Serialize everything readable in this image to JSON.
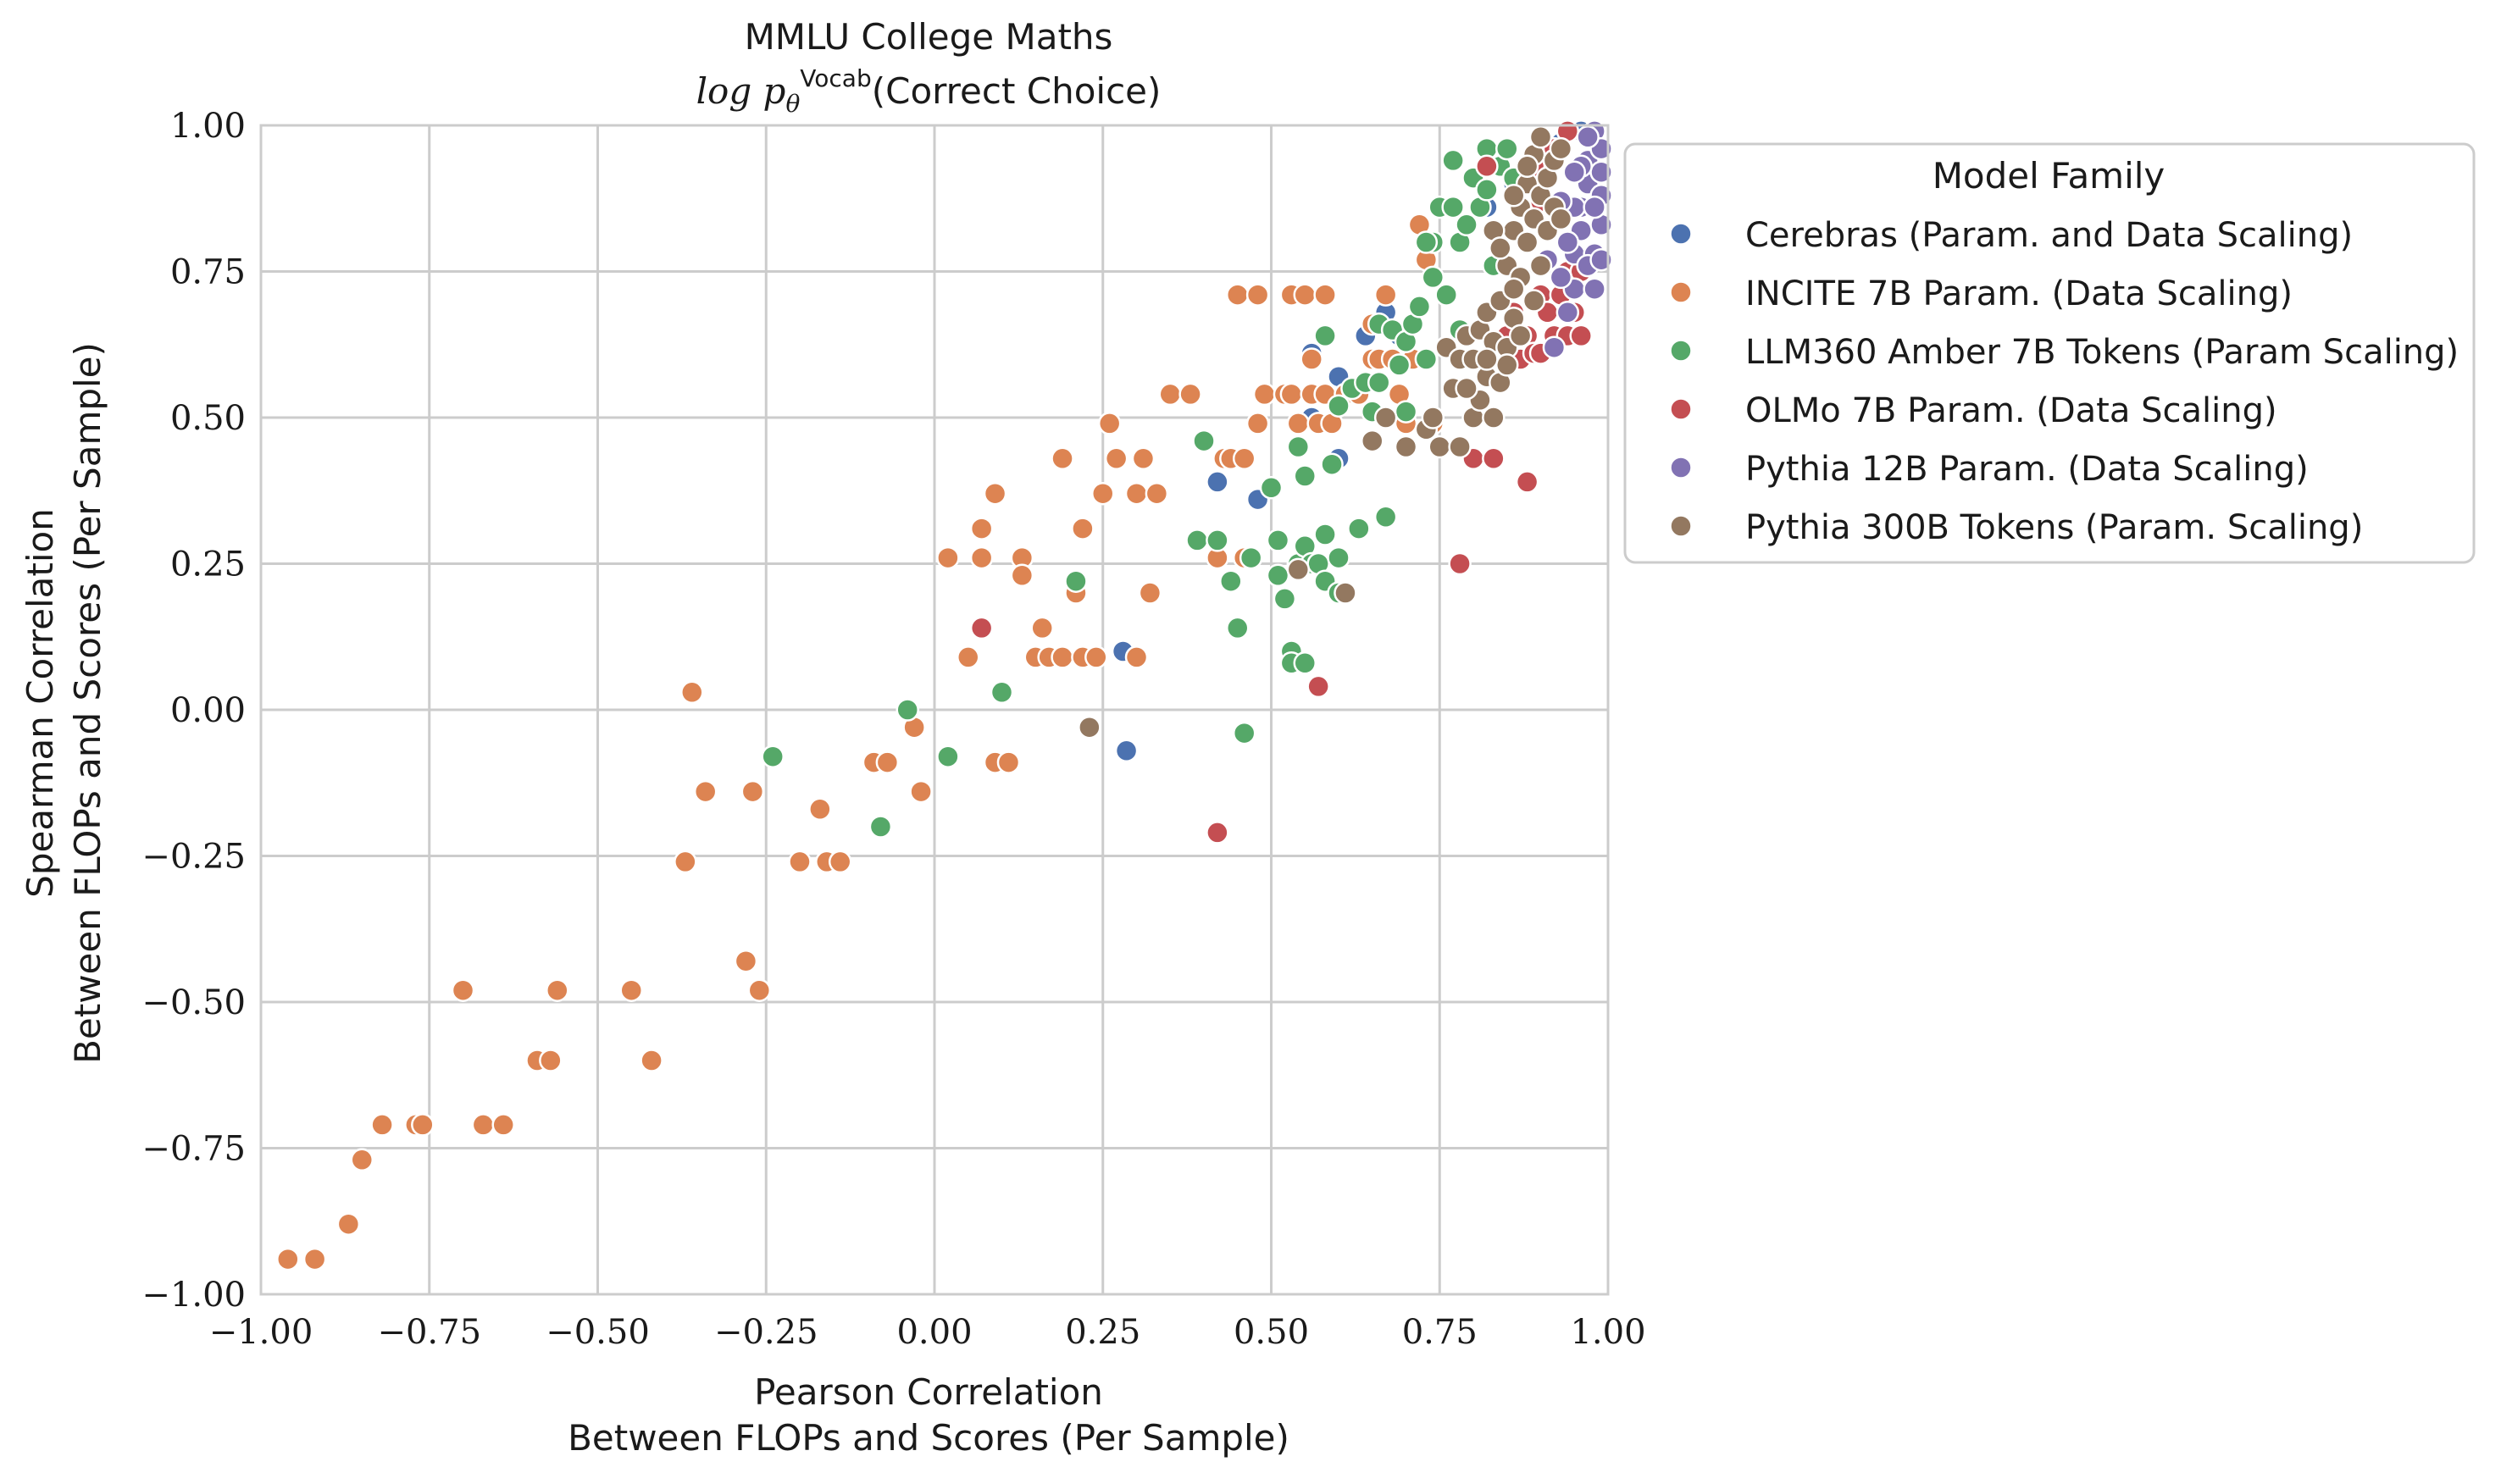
{
  "chart_data": {
    "type": "scatter",
    "title": "MMLU College Maths",
    "subtitle_prefix": "log p",
    "subtitle_sub": "θ",
    "subtitle_sup": "Vocab",
    "subtitle_suffix": "(Correct Choice)",
    "xlabel_line1": "Pearson Correlation",
    "xlabel_line2": "Between FLOPs and Scores (Per Sample)",
    "ylabel_line1": "Spearman Correlation",
    "ylabel_line2": "Between FLOPs and Scores (Per Sample)",
    "xlim": [
      -1.0,
      1.0
    ],
    "ylim": [
      -1.0,
      1.0
    ],
    "xticks": [
      -1.0,
      -0.75,
      -0.5,
      -0.25,
      0.0,
      0.25,
      0.5,
      0.75,
      1.0
    ],
    "yticks": [
      -1.0,
      -0.75,
      -0.5,
      -0.25,
      0.0,
      0.25,
      0.5,
      0.75,
      1.0
    ],
    "xtick_labels": [
      "−1.00",
      "−0.75",
      "−0.50",
      "−0.25",
      "0.00",
      "0.25",
      "0.50",
      "0.75",
      "1.00"
    ],
    "ytick_labels": [
      "−1.00",
      "−0.75",
      "−0.50",
      "−0.25",
      "0.00",
      "0.25",
      "0.50",
      "0.75",
      "1.00"
    ],
    "grid": true,
    "legend": {
      "title": "Model Family",
      "placement": "outside-right-top"
    },
    "series": [
      {
        "name": "Cerebras (Param. and Data Scaling)",
        "color": "#4c72b0",
        "points": [
          [
            0.28,
            0.1
          ],
          [
            0.285,
            -0.07
          ],
          [
            0.42,
            0.39
          ],
          [
            0.48,
            0.36
          ],
          [
            0.56,
            0.61
          ],
          [
            0.56,
            0.5
          ],
          [
            0.6,
            0.57
          ],
          [
            0.6,
            0.43
          ],
          [
            0.64,
            0.64
          ],
          [
            0.67,
            0.68
          ],
          [
            0.69,
            0.64
          ],
          [
            0.82,
            0.86
          ],
          [
            0.86,
            0.9
          ],
          [
            0.88,
            0.93
          ],
          [
            0.9,
            0.96
          ],
          [
            0.93,
            0.97
          ],
          [
            0.96,
            0.99
          ]
        ]
      },
      {
        "name": "INCITE 7B Param. (Data Scaling)",
        "color": "#dd8452",
        "points": [
          [
            -0.96,
            -0.94
          ],
          [
            -0.92,
            -0.94
          ],
          [
            -0.87,
            -0.88
          ],
          [
            -0.85,
            -0.77
          ],
          [
            -0.82,
            -0.71
          ],
          [
            -0.77,
            -0.71
          ],
          [
            -0.76,
            -0.71
          ],
          [
            -0.7,
            -0.48
          ],
          [
            -0.67,
            -0.71
          ],
          [
            -0.64,
            -0.71
          ],
          [
            -0.59,
            -0.6
          ],
          [
            -0.57,
            -0.6
          ],
          [
            -0.56,
            -0.48
          ],
          [
            -0.45,
            -0.48
          ],
          [
            -0.42,
            -0.6
          ],
          [
            -0.37,
            -0.26
          ],
          [
            -0.36,
            0.03
          ],
          [
            -0.34,
            -0.14
          ],
          [
            -0.28,
            -0.43
          ],
          [
            -0.27,
            -0.14
          ],
          [
            -0.26,
            -0.48
          ],
          [
            -0.2,
            -0.26
          ],
          [
            -0.17,
            -0.17
          ],
          [
            -0.16,
            -0.26
          ],
          [
            -0.14,
            -0.26
          ],
          [
            -0.09,
            -0.09
          ],
          [
            -0.07,
            -0.09
          ],
          [
            -0.03,
            -0.03
          ],
          [
            -0.02,
            -0.14
          ],
          [
            0.02,
            0.26
          ],
          [
            0.05,
            0.09
          ],
          [
            0.07,
            0.31
          ],
          [
            0.07,
            0.26
          ],
          [
            0.09,
            0.37
          ],
          [
            0.09,
            -0.09
          ],
          [
            0.11,
            -0.09
          ],
          [
            0.13,
            0.26
          ],
          [
            0.13,
            0.23
          ],
          [
            0.15,
            0.09
          ],
          [
            0.16,
            0.14
          ],
          [
            0.17,
            0.09
          ],
          [
            0.19,
            0.43
          ],
          [
            0.19,
            0.09
          ],
          [
            0.21,
            0.2
          ],
          [
            0.22,
            0.31
          ],
          [
            0.22,
            0.09
          ],
          [
            0.24,
            0.09
          ],
          [
            0.25,
            0.37
          ],
          [
            0.26,
            0.49
          ],
          [
            0.27,
            0.43
          ],
          [
            0.3,
            0.37
          ],
          [
            0.3,
            0.09
          ],
          [
            0.31,
            0.43
          ],
          [
            0.32,
            0.2
          ],
          [
            0.33,
            0.37
          ],
          [
            0.35,
            0.54
          ],
          [
            0.38,
            0.54
          ],
          [
            0.42,
            0.26
          ],
          [
            0.43,
            0.43
          ],
          [
            0.44,
            0.43
          ],
          [
            0.45,
            0.71
          ],
          [
            0.46,
            0.26
          ],
          [
            0.46,
            0.43
          ],
          [
            0.48,
            0.71
          ],
          [
            0.48,
            0.49
          ],
          [
            0.49,
            0.54
          ],
          [
            0.52,
            0.54
          ],
          [
            0.53,
            0.71
          ],
          [
            0.53,
            0.54
          ],
          [
            0.54,
            0.49
          ],
          [
            0.55,
            0.71
          ],
          [
            0.56,
            0.54
          ],
          [
            0.56,
            0.6
          ],
          [
            0.57,
            0.49
          ],
          [
            0.58,
            0.71
          ],
          [
            0.58,
            0.54
          ],
          [
            0.59,
            0.49
          ],
          [
            0.61,
            0.54
          ],
          [
            0.63,
            0.54
          ],
          [
            0.65,
            0.6
          ],
          [
            0.65,
            0.66
          ],
          [
            0.66,
            0.6
          ],
          [
            0.67,
            0.71
          ],
          [
            0.68,
            0.6
          ],
          [
            0.69,
            0.54
          ],
          [
            0.7,
            0.49
          ],
          [
            0.71,
            0.6
          ],
          [
            0.72,
            0.83
          ],
          [
            0.73,
            0.77
          ],
          [
            0.74,
            0.49
          ]
        ]
      },
      {
        "name": "LLM360 Amber 7B Tokens (Param Scaling)",
        "color": "#55a868",
        "points": [
          [
            -0.24,
            -0.08
          ],
          [
            -0.08,
            -0.2
          ],
          [
            -0.04,
            0.0
          ],
          [
            0.02,
            -0.08
          ],
          [
            0.1,
            0.03
          ],
          [
            0.21,
            0.22
          ],
          [
            0.4,
            0.46
          ],
          [
            0.39,
            0.29
          ],
          [
            0.42,
            0.29
          ],
          [
            0.44,
            0.22
          ],
          [
            0.45,
            0.14
          ],
          [
            0.46,
            -0.04
          ],
          [
            0.47,
            0.26
          ],
          [
            0.5,
            0.38
          ],
          [
            0.51,
            0.29
          ],
          [
            0.51,
            0.23
          ],
          [
            0.52,
            0.19
          ],
          [
            0.53,
            0.1
          ],
          [
            0.53,
            0.08
          ],
          [
            0.54,
            0.25
          ],
          [
            0.54,
            0.45
          ],
          [
            0.55,
            0.4
          ],
          [
            0.55,
            0.28
          ],
          [
            0.55,
            0.08
          ],
          [
            0.56,
            0.25
          ],
          [
            0.57,
            0.25
          ],
          [
            0.58,
            0.3
          ],
          [
            0.58,
            0.22
          ],
          [
            0.59,
            0.42
          ],
          [
            0.6,
            0.26
          ],
          [
            0.6,
            0.2
          ],
          [
            0.58,
            0.64
          ],
          [
            0.6,
            0.52
          ],
          [
            0.62,
            0.55
          ],
          [
            0.63,
            0.31
          ],
          [
            0.64,
            0.56
          ],
          [
            0.65,
            0.51
          ],
          [
            0.66,
            0.56
          ],
          [
            0.66,
            0.66
          ],
          [
            0.67,
            0.33
          ],
          [
            0.68,
            0.65
          ],
          [
            0.69,
            0.59
          ],
          [
            0.7,
            0.63
          ],
          [
            0.7,
            0.51
          ],
          [
            0.71,
            0.66
          ],
          [
            0.72,
            0.69
          ],
          [
            0.73,
            0.6
          ],
          [
            0.74,
            0.74
          ],
          [
            0.74,
            0.8
          ],
          [
            0.75,
            0.86
          ],
          [
            0.76,
            0.71
          ],
          [
            0.77,
            0.94
          ],
          [
            0.77,
            0.86
          ],
          [
            0.78,
            0.8
          ],
          [
            0.78,
            0.65
          ],
          [
            0.79,
            0.83
          ],
          [
            0.8,
            0.91
          ],
          [
            0.81,
            0.86
          ],
          [
            0.82,
            0.96
          ],
          [
            0.82,
            0.89
          ],
          [
            0.83,
            0.76
          ],
          [
            0.84,
            0.93
          ],
          [
            0.85,
            0.96
          ],
          [
            0.86,
            0.91
          ],
          [
            0.73,
            0.8
          ]
        ]
      },
      {
        "name": "OLMo 7B Param. (Data Scaling)",
        "color": "#c44e52",
        "points": [
          [
            0.07,
            0.14
          ],
          [
            0.42,
            -0.21
          ],
          [
            0.57,
            0.04
          ],
          [
            0.78,
            0.25
          ],
          [
            0.8,
            0.43
          ],
          [
            0.82,
            0.93
          ],
          [
            0.83,
            0.43
          ],
          [
            0.85,
            0.64
          ],
          [
            0.86,
            0.68
          ],
          [
            0.87,
            0.6
          ],
          [
            0.88,
            0.64
          ],
          [
            0.88,
            0.39
          ],
          [
            0.89,
            0.61
          ],
          [
            0.9,
            0.61
          ],
          [
            0.9,
            0.71
          ],
          [
            0.91,
            0.68
          ],
          [
            0.92,
            0.64
          ],
          [
            0.93,
            0.71
          ],
          [
            0.93,
            0.96
          ],
          [
            0.94,
            0.64
          ],
          [
            0.94,
            0.75
          ],
          [
            0.95,
            0.68
          ],
          [
            0.96,
            0.64
          ],
          [
            0.94,
            0.99
          ],
          [
            0.89,
            0.93
          ],
          [
            0.84,
            0.79
          ],
          [
            0.9,
            0.87
          ],
          [
            0.92,
            0.96
          ],
          [
            0.96,
            0.75
          ]
        ]
      },
      {
        "name": "Pythia 12B Param. (Data Scaling)",
        "color": "#8172b3",
        "points": [
          [
            0.92,
            0.62
          ],
          [
            0.94,
            0.68
          ],
          [
            0.95,
            0.72
          ],
          [
            0.95,
            0.78
          ],
          [
            0.96,
            0.82
          ],
          [
            0.96,
            0.86
          ],
          [
            0.97,
            0.9
          ],
          [
            0.97,
            0.94
          ],
          [
            0.98,
            0.99
          ],
          [
            0.98,
            0.78
          ],
          [
            0.99,
            0.83
          ],
          [
            0.99,
            0.88
          ],
          [
            0.99,
            0.92
          ],
          [
            0.99,
            0.96
          ],
          [
            0.98,
            0.72
          ],
          [
            0.97,
            0.76
          ],
          [
            0.93,
            0.74
          ],
          [
            0.94,
            0.8
          ],
          [
            0.95,
            0.86
          ],
          [
            0.96,
            0.93
          ],
          [
            0.97,
            0.98
          ],
          [
            0.99,
            0.77
          ],
          [
            0.98,
            0.86
          ],
          [
            0.95,
            0.92
          ],
          [
            0.91,
            0.77
          ],
          [
            0.93,
            0.87
          ]
        ]
      },
      {
        "name": "Pythia 300B Tokens (Param. Scaling)",
        "color": "#937860",
        "points": [
          [
            0.23,
            -0.03
          ],
          [
            0.54,
            0.24
          ],
          [
            0.61,
            0.2
          ],
          [
            0.65,
            0.46
          ],
          [
            0.67,
            0.5
          ],
          [
            0.7,
            0.45
          ],
          [
            0.73,
            0.48
          ],
          [
            0.74,
            0.5
          ],
          [
            0.75,
            0.45
          ],
          [
            0.76,
            0.62
          ],
          [
            0.77,
            0.55
          ],
          [
            0.78,
            0.45
          ],
          [
            0.78,
            0.6
          ],
          [
            0.79,
            0.64
          ],
          [
            0.8,
            0.5
          ],
          [
            0.8,
            0.6
          ],
          [
            0.81,
            0.65
          ],
          [
            0.82,
            0.57
          ],
          [
            0.82,
            0.68
          ],
          [
            0.83,
            0.63
          ],
          [
            0.83,
            0.5
          ],
          [
            0.84,
            0.56
          ],
          [
            0.84,
            0.7
          ],
          [
            0.85,
            0.62
          ],
          [
            0.85,
            0.76
          ],
          [
            0.86,
            0.67
          ],
          [
            0.86,
            0.82
          ],
          [
            0.87,
            0.74
          ],
          [
            0.87,
            0.86
          ],
          [
            0.88,
            0.8
          ],
          [
            0.88,
            0.9
          ],
          [
            0.89,
            0.84
          ],
          [
            0.89,
            0.95
          ],
          [
            0.9,
            0.88
          ],
          [
            0.9,
            0.76
          ],
          [
            0.91,
            0.91
          ],
          [
            0.91,
            0.82
          ],
          [
            0.92,
            0.94
          ],
          [
            0.92,
            0.86
          ],
          [
            0.93,
            0.96
          ],
          [
            0.93,
            0.84
          ],
          [
            0.83,
            0.82
          ],
          [
            0.86,
            0.88
          ],
          [
            0.84,
            0.79
          ],
          [
            0.88,
            0.93
          ],
          [
            0.9,
            0.98
          ],
          [
            0.85,
            0.59
          ],
          [
            0.82,
            0.6
          ],
          [
            0.81,
            0.53
          ],
          [
            0.79,
            0.55
          ],
          [
            0.86,
            0.72
          ],
          [
            0.87,
            0.64
          ],
          [
            0.89,
            0.7
          ]
        ]
      }
    ]
  }
}
